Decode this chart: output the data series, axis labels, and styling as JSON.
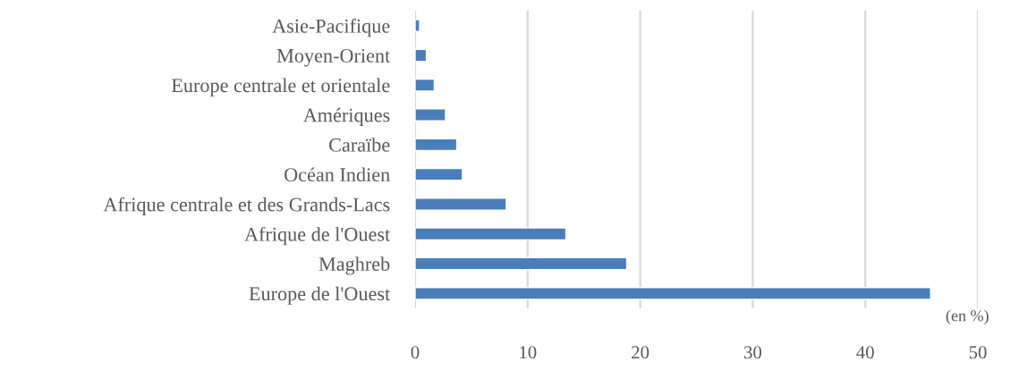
{
  "chart_data": {
    "type": "bar",
    "orientation": "horizontal",
    "categories": [
      "Asie-Pacifique",
      "Moyen-Orient",
      "Europe centrale et orientale",
      "Amériques",
      "Caraïbe",
      "Océan Indien",
      "Afrique centrale et des Grands-Lacs",
      "Afrique de l'Ouest",
      "Maghreb",
      "Europe de l'Ouest"
    ],
    "values": [
      0.4,
      1.0,
      1.7,
      2.7,
      3.7,
      4.2,
      8.1,
      13.4,
      18.8,
      45.8
    ],
    "color": "#4a7ebb",
    "xlim": [
      0,
      50
    ],
    "xticks": [
      0,
      10,
      20,
      30,
      40,
      50
    ],
    "grid": "x",
    "annotations": [
      "(en %)"
    ]
  }
}
